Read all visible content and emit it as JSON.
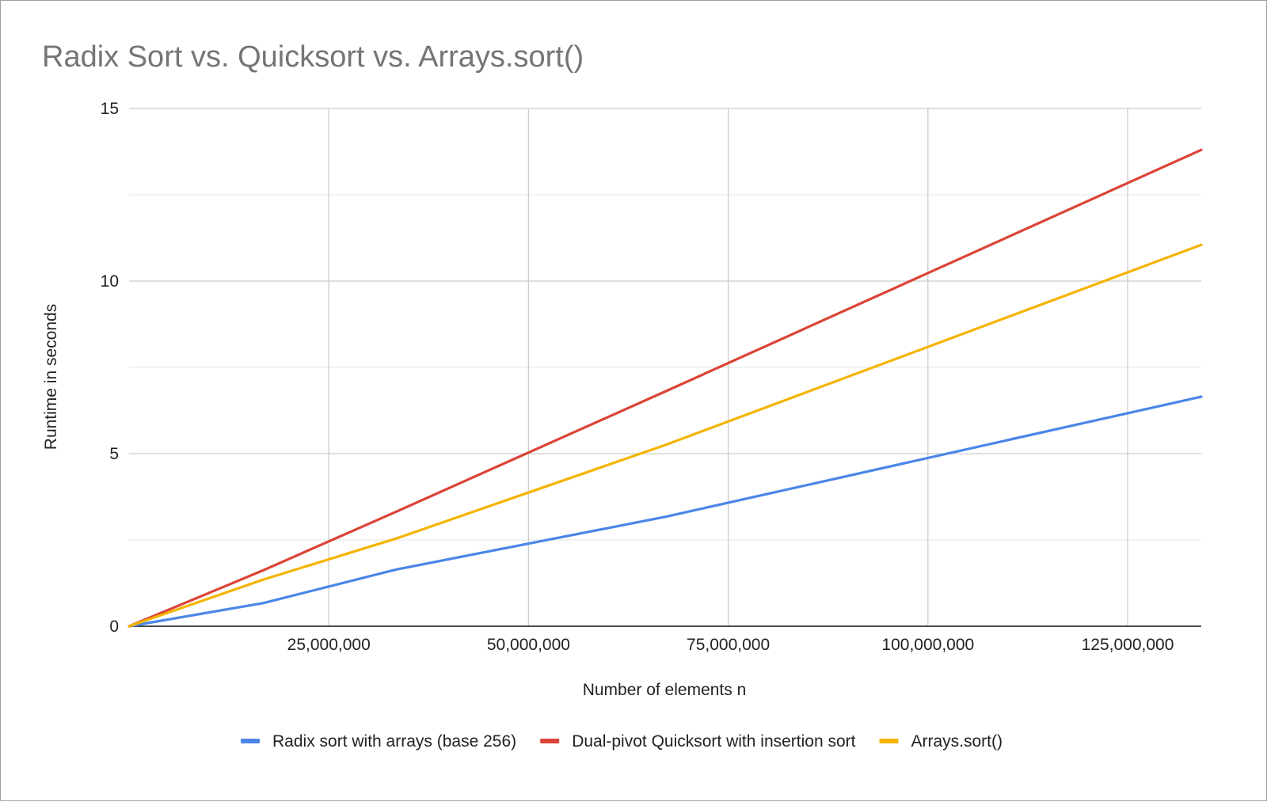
{
  "chart_data": {
    "type": "line",
    "title": "Radix Sort vs. Quicksort vs. Arrays.sort()",
    "xlabel": "Number of elements n",
    "ylabel": "Runtime in seconds",
    "xlim": [
      0,
      134217728
    ],
    "ylim": [
      0,
      15
    ],
    "x_ticks": [
      25000000,
      50000000,
      75000000,
      100000000,
      125000000
    ],
    "x_tick_labels": [
      "25,000,000",
      "50,000,000",
      "75,000,000",
      "100,000,000",
      "125,000,000"
    ],
    "y_ticks": [
      0,
      5,
      10,
      15
    ],
    "y_tick_labels": [
      "0",
      "5",
      "10",
      "15"
    ],
    "y_minor_gridlines": [
      2.5,
      7.5,
      12.5
    ],
    "grid": true,
    "legend_position": "bottom",
    "x": [
      0,
      16777216,
      33554432,
      67108864,
      134217728
    ],
    "series": [
      {
        "name": "Radix sort with arrays (base 256)",
        "color": "#4a86e8",
        "values": [
          0,
          0.67,
          1.65,
          3.17,
          6.65
        ]
      },
      {
        "name": "Dual-pivot Quicksort with insertion sort",
        "color": "#db4437",
        "values": [
          0,
          1.62,
          3.33,
          6.8,
          13.8
        ]
      },
      {
        "name": "Arrays.sort()",
        "color": "#f4b400",
        "values": [
          0,
          1.35,
          2.55,
          5.25,
          11.05
        ]
      }
    ]
  }
}
